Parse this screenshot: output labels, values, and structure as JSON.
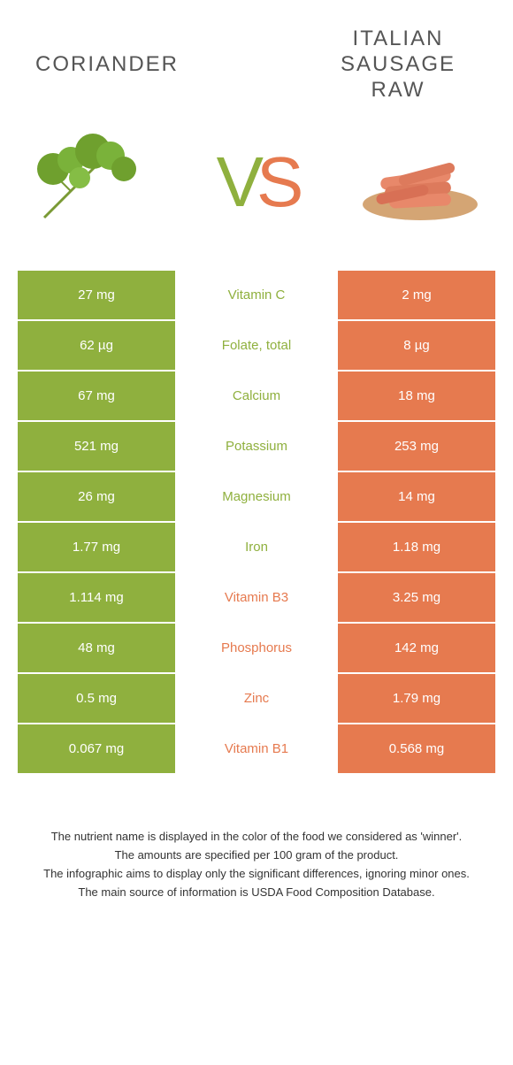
{
  "header": {
    "left_title": "Coriander",
    "right_title": "Italian Sausage Raw"
  },
  "vs": {
    "v": "V",
    "s": "S"
  },
  "colors": {
    "green": "#8fb03e",
    "orange": "#e67a4f",
    "text_mid_green": "#8fb03e",
    "text_mid_orange": "#e67a4f"
  },
  "rows": [
    {
      "left": "27 mg",
      "label": "Vitamin C",
      "right": "2 mg",
      "winner": "left"
    },
    {
      "left": "62 µg",
      "label": "Folate, total",
      "right": "8 µg",
      "winner": "left"
    },
    {
      "left": "67 mg",
      "label": "Calcium",
      "right": "18 mg",
      "winner": "left"
    },
    {
      "left": "521 mg",
      "label": "Potassium",
      "right": "253 mg",
      "winner": "left"
    },
    {
      "left": "26 mg",
      "label": "Magnesium",
      "right": "14 mg",
      "winner": "left"
    },
    {
      "left": "1.77 mg",
      "label": "Iron",
      "right": "1.18 mg",
      "winner": "left"
    },
    {
      "left": "1.114 mg",
      "label": "Vitamin B3",
      "right": "3.25 mg",
      "winner": "right"
    },
    {
      "left": "48 mg",
      "label": "Phosphorus",
      "right": "142 mg",
      "winner": "right"
    },
    {
      "left": "0.5 mg",
      "label": "Zinc",
      "right": "1.79 mg",
      "winner": "right"
    },
    {
      "left": "0.067 mg",
      "label": "Vitamin B1",
      "right": "0.568 mg",
      "winner": "right"
    }
  ],
  "footer": {
    "line1": "The nutrient name is displayed in the color of the food we considered as 'winner'.",
    "line2": "The amounts are specified per 100 gram of the product.",
    "line3": "The infographic aims to display only the significant differences, ignoring minor ones.",
    "line4": "The main source of information is USDA Food Composition Database."
  }
}
